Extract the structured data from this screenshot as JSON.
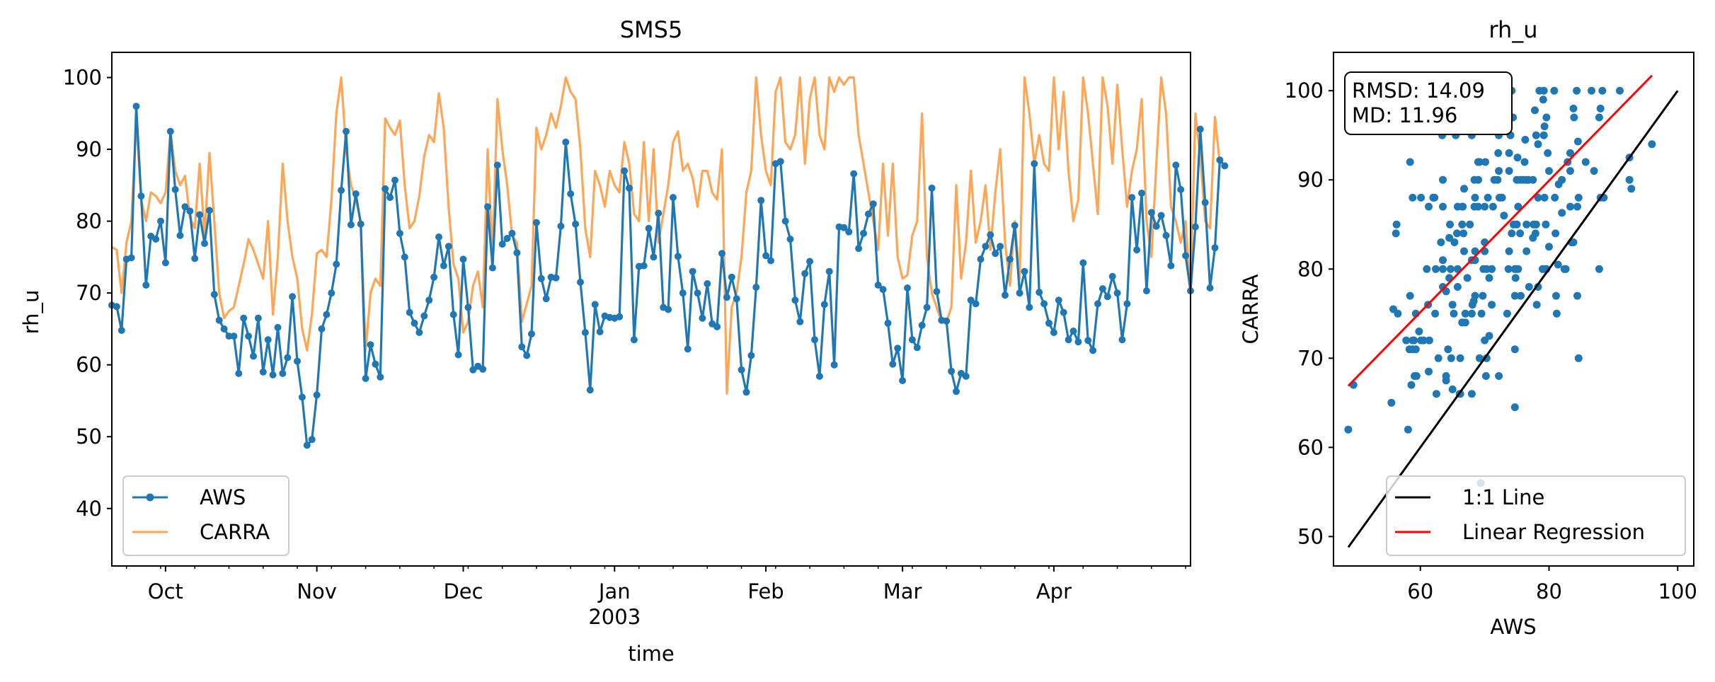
{
  "chart_data": [
    {
      "type": "line",
      "title": "SMS5",
      "xlabel": "time",
      "ylabel": "rh_u",
      "xlim": [
        "2002-09-20",
        "2003-04-29"
      ],
      "ylim": [
        32,
        103.5
      ],
      "yticks": [
        40,
        50,
        60,
        70,
        80,
        90,
        100
      ],
      "xticks": [
        {
          "date": "2002-10-01",
          "label": "Oct",
          "sublabel": ""
        },
        {
          "date": "2002-11-01",
          "label": "Nov",
          "sublabel": ""
        },
        {
          "date": "2002-12-01",
          "label": "Dec",
          "sublabel": ""
        },
        {
          "date": "2003-01-01",
          "label": "Jan",
          "sublabel": "2003"
        },
        {
          "date": "2003-02-01",
          "label": "Feb",
          "sublabel": ""
        },
        {
          "date": "2003-03-01",
          "label": "Mar",
          "sublabel": ""
        },
        {
          "date": "2003-04-01",
          "label": "Apr",
          "sublabel": ""
        }
      ],
      "legend": {
        "placement": "lower-left",
        "entries": [
          "AWS",
          "CARRA"
        ]
      },
      "grid": false,
      "x_start": "2002-09-20",
      "x_step_days": 1,
      "series": [
        {
          "name": "AWS",
          "color": "#1f77b4",
          "marker": "circle",
          "values": [
            68.3,
            68.1,
            64.8,
            74.7,
            74.9,
            96.0,
            83.5,
            71.1,
            77.9,
            77.5,
            80.0,
            74.2,
            92.5,
            84.4,
            78.0,
            82.0,
            81.4,
            74.8,
            80.9,
            76.9,
            81.5,
            69.8,
            66.2,
            65.0,
            64.0,
            64.0,
            58.8,
            66.5,
            64.0,
            61.2,
            66.5,
            59.0,
            63.5,
            58.6,
            65.2,
            58.8,
            61.0,
            69.5,
            60.5,
            55.5,
            48.8,
            49.6,
            55.8,
            65.0,
            67.0,
            70.0,
            74.0,
            84.3,
            92.5,
            79.5,
            83.8,
            79.6,
            58.1,
            62.8,
            60.1,
            58.3,
            84.5,
            83.3,
            85.7,
            78.3,
            75.0,
            67.3,
            65.8,
            64.5,
            66.8,
            69.0,
            72.2,
            77.8,
            73.8,
            76.5,
            67.0,
            61.4,
            74.7,
            68.0,
            59.3,
            59.8,
            59.4,
            82.0,
            73.5,
            87.8,
            76.8,
            77.6,
            78.3,
            75.6,
            62.5,
            61.3,
            64.3,
            79.8,
            72.0,
            69.2,
            72.2,
            72.1,
            79.3,
            91.0,
            83.8,
            79.6,
            71.5,
            64.5,
            56.5,
            68.4,
            64.6,
            66.8,
            66.6,
            66.5,
            66.7,
            87.0,
            84.6,
            63.5,
            73.7,
            73.8,
            79.0,
            75.0,
            81.1,
            68.0,
            67.7,
            83.3,
            75.1,
            70.0,
            62.2,
            73.0,
            70.0,
            66.5,
            71.3,
            65.7,
            65.3,
            75.5,
            69.4,
            72.2,
            69.2,
            59.3,
            56.2,
            61.3,
            70.8,
            82.9,
            75.2,
            74.5,
            88.0,
            88.3,
            80.0,
            77.5,
            69.0,
            66.0,
            72.7,
            74.4,
            63.5,
            58.4,
            68.4,
            73.0,
            60.0,
            79.2,
            79.1,
            78.5,
            86.6,
            76.2,
            78.3,
            81.0,
            82.4,
            71.1,
            70.5,
            65.8,
            60.1,
            62.3,
            57.8,
            70.7,
            63.5,
            62.4,
            65.5,
            68.0,
            84.6,
            70.2,
            66.2,
            66.1,
            59.1,
            56.3,
            58.8,
            58.4,
            69.0,
            68.5,
            74.7,
            76.5,
            78.1,
            75.5,
            76.5,
            69.7,
            74.7,
            79.4,
            70.0,
            73.0,
            68.0,
            88.0,
            70.1,
            68.5,
            65.8,
            64.5,
            69.0,
            67.3,
            63.5,
            64.7,
            63.2,
            74.2,
            63.4,
            62.0,
            68.5,
            70.6,
            69.5,
            72.3,
            70.0,
            63.5,
            68.5,
            83.3,
            76.0,
            83.9,
            70.3,
            81.2,
            79.3,
            80.8,
            78.0,
            73.8,
            87.8,
            84.4,
            75.2,
            70.3,
            79.2,
            92.8,
            82.6,
            70.7,
            76.3,
            88.5,
            87.7
          ]
        },
        {
          "name": "CARRA",
          "color": "#ff7f0e",
          "marker": "none",
          "values": [
            76.4,
            76.0,
            70.0,
            77.0,
            80.0,
            94.0,
            83.0,
            80.0,
            84.0,
            83.5,
            82.5,
            84.0,
            92.5,
            87.0,
            85.0,
            86.3,
            80.5,
            79.0,
            88.0,
            78.0,
            89.5,
            80.0,
            70.0,
            66.5,
            67.5,
            68.0,
            71.0,
            74.0,
            77.5,
            76.0,
            74.0,
            72.0,
            80.0,
            67.0,
            75.0,
            88.0,
            80.0,
            75.0,
            72.0,
            65.0,
            62.0,
            67.0,
            75.5,
            76.0,
            75.0,
            83.0,
            95.0,
            100.0,
            90.0,
            85.0,
            83.0,
            80.0,
            62.0,
            70.0,
            72.0,
            71.0,
            94.3,
            93.0,
            92.0,
            94.0,
            85.0,
            79.0,
            80.0,
            83.5,
            89.0,
            92.0,
            91.0,
            97.8,
            93.0,
            82.0,
            74.0,
            72.0,
            64.5,
            66.0,
            71.0,
            73.0,
            68.0,
            90.0,
            75.0,
            97.0,
            90.0,
            85.0,
            78.0,
            77.0,
            66.0,
            68.5,
            71.0,
            93.0,
            90.0,
            92.0,
            95.0,
            93.0,
            96.0,
            100.0,
            98.0,
            97.0,
            90.0,
            79.0,
            75.0,
            87.0,
            85.0,
            82.0,
            87.0,
            85.0,
            84.0,
            91.0,
            88.0,
            81.0,
            80.0,
            91.0,
            80.0,
            90.0,
            77.0,
            81.0,
            85.0,
            91.0,
            92.5,
            87.0,
            88.0,
            86.0,
            82.0,
            87.0,
            87.0,
            84.0,
            83.0,
            90.0,
            56.0,
            68.0,
            70.0,
            75.0,
            84.0,
            87.0,
            100.0,
            92.0,
            87.0,
            85.0,
            98.0,
            100.0,
            91.0,
            90.0,
            92.0,
            100.0,
            88.0,
            97.0,
            100.0,
            92.0,
            90.0,
            100.0,
            98.0,
            100.0,
            99.0,
            100.0,
            100.0,
            92.0,
            88.0,
            84.0,
            80.0,
            76.0,
            88.0,
            78.0,
            88.0,
            75.0,
            72.0,
            72.5,
            78.0,
            80.0,
            95.0,
            75.0,
            70.0,
            68.0,
            66.0,
            66.0,
            68.0,
            85.0,
            72.0,
            77.0,
            87.0,
            77.0,
            80.0,
            85.0,
            76.0,
            84.0,
            90.0,
            77.0,
            71.0,
            80.0,
            72.0,
            100.0,
            95.0,
            88.0,
            92.0,
            88.0,
            87.0,
            100.0,
            90.0,
            98.0,
            87.0,
            80.0,
            83.0,
            100.0,
            95.0,
            88.0,
            81.0,
            100.0,
            96.0,
            88.0,
            99.0,
            90.0,
            82.0,
            87.0,
            90.0,
            97.0,
            80.0,
            75.0,
            88.0,
            100.0,
            95.0,
            82.0,
            80.0,
            77.0,
            80.0,
            70.0,
            95.0,
            89.0,
            80.0,
            79.0,
            94.5,
            88.0
          ]
        }
      ]
    },
    {
      "type": "scatter",
      "title": "rh_u",
      "xlabel": "AWS",
      "ylabel": "CARRA",
      "xlim": [
        46.5,
        102.5
      ],
      "ylim": [
        46.7,
        104.3
      ],
      "xticks": [
        60,
        80,
        100
      ],
      "yticks": [
        50,
        60,
        70,
        80,
        90,
        100
      ],
      "annotation": [
        "RMSD: 14.09",
        "MD: 11.96"
      ],
      "legend": {
        "placement": "lower-right",
        "entries": [
          "1:1 Line",
          "Linear Regression"
        ]
      },
      "grid": false,
      "one_to_one_line": {
        "x": [
          48.8,
          100
        ],
        "color": "#000000"
      },
      "regression_line": {
        "x": [
          48.8,
          96.0
        ],
        "y": [
          66.9,
          101.7
        ],
        "color": "#ff0000"
      },
      "points_color": "#1f77b4"
    }
  ]
}
